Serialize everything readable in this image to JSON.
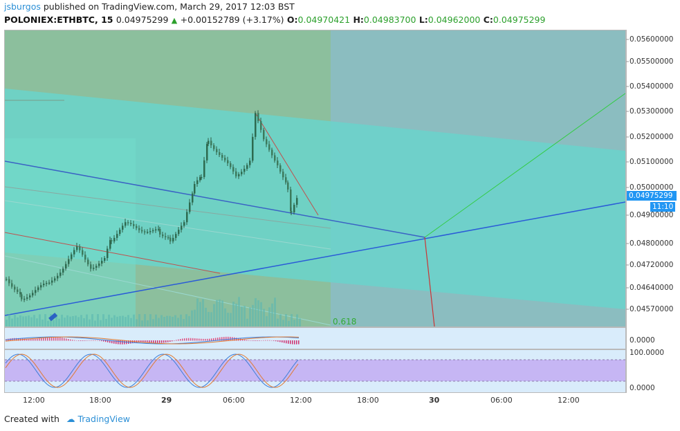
{
  "header": {
    "author": "jsburgos",
    "published_text": "published on TradingView.com, March 29, 2017 12:03 BST",
    "symbol": "POLONIEX:ETHBTC, 15",
    "last": "0.04975299",
    "change": "+0.00152789 (+3.17%)",
    "o_label": "O:",
    "o_value": "0.04970421",
    "h_label": "H:",
    "h_value": "0.04983700",
    "l_label": "L:",
    "l_value": "0.04962000",
    "c_label": "C:",
    "c_value": "0.04975299"
  },
  "price_axis": {
    "labels": [
      "0.05600000",
      "0.05500000",
      "0.05400000",
      "0.05300000",
      "0.05200000",
      "0.05100000",
      "0.05000000",
      "0.04900000",
      "0.04800000",
      "0.04720000",
      "0.04640000",
      "0.04570000"
    ],
    "current_price": "0.04975299",
    "countdown": "11:10"
  },
  "macd_axis": {
    "label": "0.0000"
  },
  "stoch_axis": {
    "top": "100.0000",
    "bottom": "0.0000"
  },
  "time_axis": {
    "labels": [
      "12:00",
      "18:00",
      "29",
      "06:00",
      "12:00",
      "18:00",
      "30",
      "06:00",
      "12:00"
    ]
  },
  "fib_label": "0.618",
  "footer": {
    "created_with": "Created with",
    "brand": "TradingView"
  },
  "colors": {
    "up": "#2ca02c",
    "brand": "#2b8fd6",
    "price_tag": "#2196f3",
    "fib_green": "#8fbf9c",
    "channel": "#66d3c8"
  }
}
